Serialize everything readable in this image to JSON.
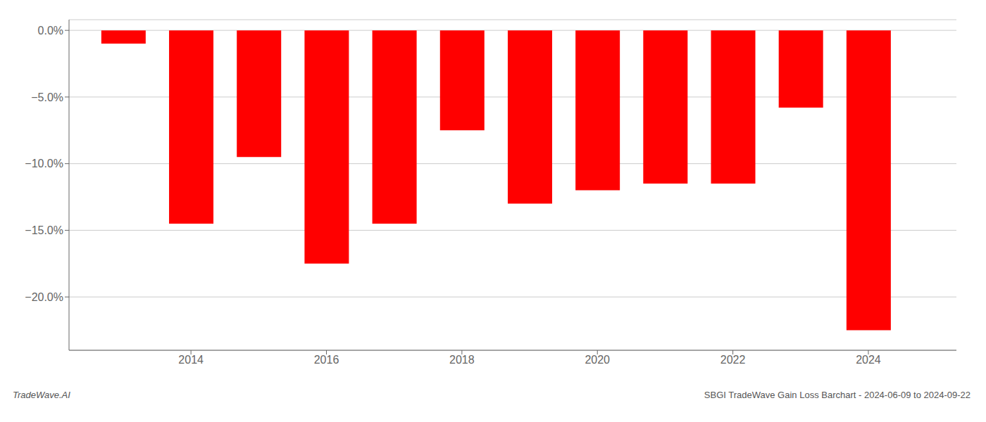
{
  "chart_data": {
    "type": "bar",
    "x": [
      2013,
      2014,
      2015,
      2016,
      2017,
      2018,
      2019,
      2020,
      2021,
      2022,
      2023,
      2024
    ],
    "values": [
      -1.0,
      -14.5,
      -9.5,
      -17.5,
      -14.5,
      -7.5,
      -13.0,
      -12.0,
      -11.5,
      -11.5,
      -5.8,
      -22.5
    ],
    "color": "#ff0000",
    "xlim": [
      2012.2,
      2025.3
    ],
    "xticks": [
      2014,
      2016,
      2018,
      2020,
      2022,
      2024
    ],
    "ylim": [
      -24,
      0.8
    ],
    "yticks": [
      {
        "value": 0,
        "label": "0.0%"
      },
      {
        "value": -5,
        "label": "−5.0%"
      },
      {
        "value": -10,
        "label": "−10.0%"
      },
      {
        "value": -15,
        "label": "−15.0%"
      },
      {
        "value": -20,
        "label": "−20.0%"
      }
    ],
    "grid": true,
    "annotations": [
      "TradeWave.AI",
      "SBGI TradeWave Gain Loss Barchart - 2024-06-09 to 2024-09-22"
    ]
  }
}
